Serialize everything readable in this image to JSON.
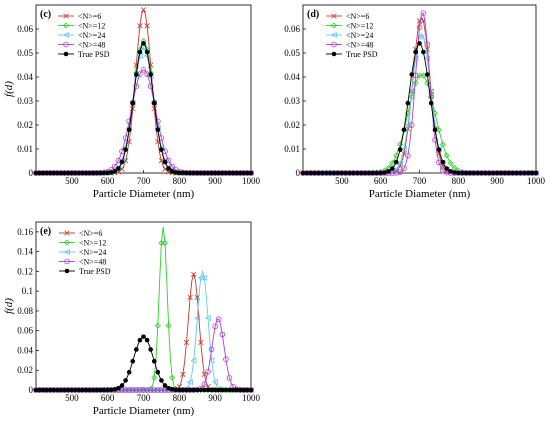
{
  "chart_data": [
    {
      "type": "line",
      "panel_label": "(c)",
      "xlabel": "Particle Diameter (nm)",
      "ylabel": "f(d)",
      "xlim": [
        400,
        1000
      ],
      "ylim": [
        0,
        0.07
      ],
      "xticks": [
        "500",
        "600",
        "700",
        "800",
        "900",
        "1000"
      ],
      "yticks": [
        "0",
        "0.01",
        "0.02",
        "0.03",
        "0.04",
        "0.05",
        "0.06"
      ],
      "legend_position": "top-right-of-center",
      "series": [
        {
          "name": "<N>=6",
          "color": "#c0392b",
          "marker": "x",
          "peak": 0.068,
          "mean": 700,
          "sigma": 22
        },
        {
          "name": "<N>=12",
          "color": "#2ecc2e",
          "marker": "diamond",
          "peak": 0.055,
          "mean": 700,
          "sigma": 27
        },
        {
          "name": "<N>=24",
          "color": "#5fc8e8",
          "marker": "triangle-left",
          "peak": 0.052,
          "mean": 700,
          "sigma": 28
        },
        {
          "name": "<N>=48",
          "color": "#b040d0",
          "marker": "circle",
          "peak": 0.043,
          "mean": 700,
          "sigma": 34
        },
        {
          "name": "True PSD",
          "color": "#000000",
          "marker": "dot",
          "peak": 0.054,
          "mean": 700,
          "sigma": 27
        }
      ]
    },
    {
      "type": "line",
      "panel_label": "(d)",
      "xlabel": "Particle Diameter (nm)",
      "ylabel": "",
      "xlim": [
        400,
        1000
      ],
      "ylim": [
        0,
        0.07
      ],
      "xticks": [
        "500",
        "600",
        "700",
        "800",
        "900",
        "1000"
      ],
      "yticks": [
        "0",
        "0.01",
        "0.02",
        "0.03",
        "0.04",
        "0.05",
        "0.06"
      ],
      "legend_position": "top-left",
      "series": [
        {
          "name": "<N>=6",
          "color": "#c0392b",
          "marker": "x",
          "peak": 0.065,
          "mean": 705,
          "sigma": 22
        },
        {
          "name": "<N>=12",
          "color": "#2ecc2e",
          "marker": "diamond",
          "peak": 0.041,
          "mean": 705,
          "sigma": 35
        },
        {
          "name": "<N>=24",
          "color": "#5fc8e8",
          "marker": "triangle-left",
          "peak": 0.058,
          "mean": 705,
          "sigma": 24
        },
        {
          "name": "<N>=48",
          "color": "#b040d0",
          "marker": "circle",
          "peak": 0.067,
          "mean": 708,
          "sigma": 18
        },
        {
          "name": "True PSD",
          "color": "#000000",
          "marker": "dot",
          "peak": 0.054,
          "mean": 700,
          "sigma": 27
        }
      ]
    },
    {
      "type": "line",
      "panel_label": "(e)",
      "xlabel": "Particle Diameter (nm)",
      "ylabel": "f(d)",
      "xlim": [
        400,
        1000
      ],
      "ylim": [
        0,
        0.17
      ],
      "xticks": [
        "500",
        "600",
        "700",
        "800",
        "900",
        "1000"
      ],
      "yticks": [
        "0",
        "0.02",
        "0.04",
        "0.06",
        "0.08",
        "0.1",
        "0.12",
        "0.14",
        "0.16"
      ],
      "legend_position": "top-left",
      "series": [
        {
          "name": "<N>=6",
          "color": "#c0392b",
          "marker": "x",
          "peak": 0.117,
          "mean": 840,
          "sigma": 15
        },
        {
          "name": "<N>=12",
          "color": "#2ecc2e",
          "marker": "diamond",
          "peak": 0.165,
          "mean": 755,
          "sigma": 11
        },
        {
          "name": "<N>=24",
          "color": "#5fc8e8",
          "marker": "triangle-left",
          "peak": 0.12,
          "mean": 865,
          "sigma": 15
        },
        {
          "name": "<N>=48",
          "color": "#b040d0",
          "marker": "circle",
          "peak": 0.072,
          "mean": 908,
          "sigma": 17
        },
        {
          "name": "True PSD",
          "color": "#000000",
          "marker": "dot",
          "peak": 0.054,
          "mean": 700,
          "sigma": 27
        }
      ]
    }
  ]
}
